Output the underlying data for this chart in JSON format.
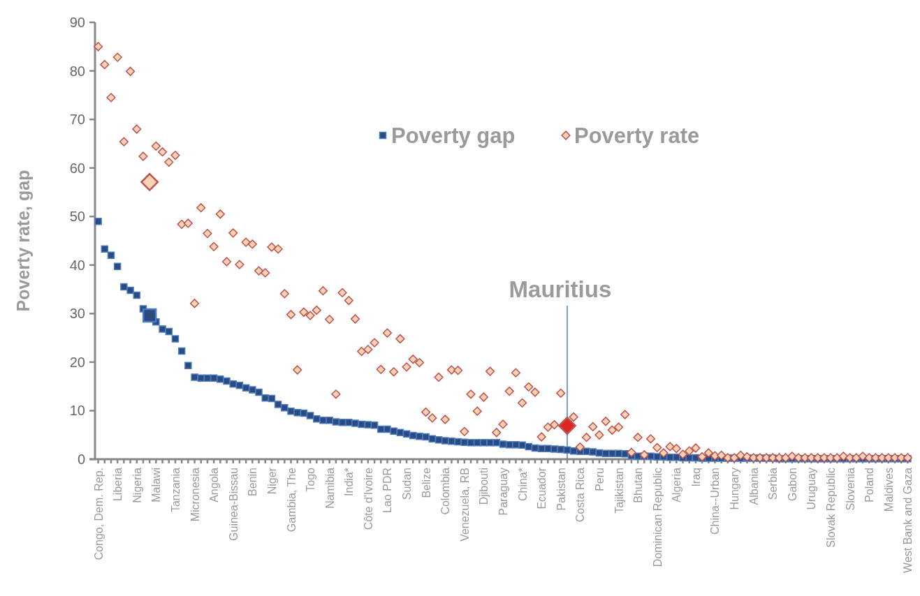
{
  "chart_data": {
    "type": "scatter",
    "ylabel": "Poverty rate, gap",
    "ylim": [
      0,
      90
    ],
    "yticks": [
      0,
      10,
      20,
      30,
      40,
      50,
      60,
      70,
      80,
      90
    ],
    "grid": false,
    "legend": "top",
    "annotations": [
      "Mauritius"
    ],
    "categories": [
      "Congo, Dem. Rep.",
      null,
      null,
      "Liberia",
      null,
      null,
      "Nigeria",
      null,
      null,
      "Malawi",
      null,
      null,
      "Tanzania",
      null,
      null,
      "Micronesia",
      null,
      null,
      "Angola",
      null,
      null,
      "Guinea-Bissau",
      null,
      null,
      "Benin",
      null,
      null,
      "Niger",
      null,
      null,
      "Gambia, The",
      null,
      null,
      "Togo",
      null,
      null,
      "Namibia",
      null,
      null,
      "India*",
      null,
      null,
      "Côte d'Ivoire",
      null,
      null,
      "Lao PDR",
      null,
      null,
      "Sudan",
      null,
      null,
      "Belize",
      null,
      null,
      "Colombia",
      null,
      null,
      "Venezuela, RB",
      null,
      null,
      "Djibouti",
      null,
      null,
      "Paraguay",
      null,
      null,
      "China*",
      null,
      null,
      "Ecuador",
      null,
      null,
      "Pakistan",
      null,
      null,
      "Costa Rica",
      null,
      null,
      "Peru",
      null,
      null,
      "Tajikistan",
      null,
      null,
      "Bhutan",
      null,
      null,
      "Dominican Republic",
      null,
      null,
      "Algeria",
      null,
      null,
      "Iraq",
      null,
      null,
      "China--Urban",
      null,
      null,
      "Hungary",
      null,
      null,
      "Albania",
      null,
      null,
      "Serbia",
      null,
      null,
      "Gabon",
      null,
      null,
      "Uruguay",
      null,
      null,
      "Slovak Republic",
      null,
      null,
      "Slovenia",
      null,
      null,
      "Poland",
      null,
      null,
      "Maldives",
      null,
      null,
      "West Bank and Gaza"
    ],
    "series": [
      {
        "name": "Poverty gap",
        "color": "#2b4a80",
        "marker": "square",
        "values": [
          49.0,
          43.3,
          42.0,
          39.7,
          35.5,
          34.8,
          33.8,
          31.0,
          null,
          28.3,
          26.8,
          26.3,
          24.8,
          22.3,
          19.3,
          16.9,
          16.7,
          16.7,
          16.7,
          16.5,
          16.1,
          15.5,
          15.2,
          14.7,
          14.3,
          13.8,
          12.6,
          12.5,
          11.3,
          10.6,
          9.9,
          9.6,
          9.5,
          9.0,
          8.3,
          8.0,
          8.0,
          7.7,
          7.6,
          7.6,
          7.4,
          7.2,
          7.1,
          7.0,
          6.2,
          6.2,
          5.8,
          5.5,
          5.2,
          4.9,
          4.7,
          4.6,
          4.2,
          4.0,
          3.8,
          3.7,
          3.6,
          3.5,
          3.4,
          3.4,
          3.4,
          3.4,
          3.4,
          3.1,
          3.0,
          3.0,
          2.9,
          2.6,
          2.3,
          2.2,
          2.2,
          2.1,
          2.0,
          1.9,
          1.7,
          1.6,
          1.6,
          1.5,
          1.3,
          1.2,
          1.2,
          1.2,
          1.1,
          0.7,
          0.6,
          0.6,
          0.6,
          0.5,
          0.5,
          0.4,
          0.4,
          0.3,
          0.3,
          0.3,
          0.2,
          0.2,
          0.2,
          0.2,
          0.2,
          0.2,
          0.2,
          0.2,
          0.2,
          0.2,
          0.2,
          0.2,
          0.1,
          0.1,
          0.1,
          0.1,
          0.1,
          0.1,
          0.1,
          0.1,
          0.1,
          0.1,
          0.1,
          0.1,
          0.1,
          0.1,
          0.1,
          0.1,
          0.1,
          0.1,
          0.1,
          0.1,
          0.1
        ]
      },
      {
        "name": "Poverty rate",
        "color": "#fcd3b4",
        "marker": "diamond",
        "values": [
          85.0,
          81.3,
          74.5,
          82.8,
          65.4,
          79.9,
          68.0,
          62.4,
          null,
          64.5,
          63.3,
          61.2,
          62.6,
          48.4,
          48.6,
          32.1,
          51.8,
          46.5,
          43.8,
          50.5,
          40.7,
          46.6,
          40.1,
          44.7,
          44.3,
          38.8,
          38.4,
          43.7,
          43.3,
          34.1,
          29.8,
          18.4,
          30.3,
          29.6,
          30.7,
          34.7,
          28.8,
          13.4,
          34.3,
          32.7,
          28.9,
          22.2,
          22.6,
          24.0,
          18.5,
          26.0,
          18.0,
          24.8,
          19.0,
          20.6,
          19.9,
          9.7,
          8.5,
          16.9,
          8.2,
          18.4,
          18.3,
          5.7,
          13.4,
          9.9,
          12.8,
          18.1,
          5.5,
          7.2,
          14.0,
          17.8,
          11.6,
          14.9,
          13.8,
          4.6,
          6.6,
          7.1,
          13.6,
          null,
          8.7,
          2.5,
          4.5,
          6.7,
          5.0,
          7.8,
          6.0,
          6.6,
          9.2,
          1.4,
          4.5,
          0.9,
          4.2,
          2.4,
          1.3,
          2.6,
          2.2,
          1.0,
          1.7,
          2.3,
          0.5,
          1.3,
          0.7,
          0.8,
          0.3,
          0.3,
          0.8,
          0.5,
          0.3,
          0.3,
          0.3,
          0.3,
          0.3,
          0.3,
          0.6,
          0.3,
          0.3,
          0.3,
          0.3,
          0.3,
          0.3,
          0.3,
          0.6,
          0.3,
          0.3,
          0.6,
          0.3,
          0.3,
          0.3,
          0.3,
          0.3,
          0.3,
          0.3
        ]
      },
      {
        "color": "#2b4a80",
        "marker": "square",
        "values": [
          null,
          null,
          null,
          null,
          null,
          null,
          null,
          null,
          29.6,
          null,
          null,
          null,
          null,
          null,
          null,
          null,
          null,
          null,
          null,
          null,
          null,
          null,
          null,
          null,
          null,
          null,
          null,
          null,
          null,
          null,
          null,
          null,
          null,
          null,
          null,
          null,
          null,
          null,
          null,
          null,
          null,
          null,
          null,
          null,
          null,
          null,
          null,
          null,
          null,
          null,
          null,
          null,
          null,
          null,
          null,
          null,
          null,
          null,
          null,
          null,
          null,
          null,
          null,
          null,
          null,
          null,
          null,
          null,
          null,
          null,
          null,
          null,
          null,
          null,
          null,
          null,
          null,
          null,
          null,
          null,
          null,
          null,
          null,
          null,
          null,
          null,
          null,
          null,
          null,
          null,
          null,
          null,
          null,
          null,
          null,
          null,
          null,
          null,
          null,
          null,
          null,
          null,
          null,
          null,
          null,
          null,
          null,
          null,
          null,
          null,
          null,
          null,
          null,
          null,
          null,
          null,
          null,
          null,
          null,
          null,
          null,
          null,
          null,
          null,
          null,
          null,
          null
        ]
      },
      {
        "color": "#fcd3b4",
        "marker": "diamond",
        "values": [
          null,
          null,
          null,
          null,
          null,
          null,
          null,
          null,
          57.1,
          null,
          null,
          null,
          null,
          null,
          null,
          null,
          null,
          null,
          null,
          null,
          null,
          null,
          null,
          null,
          null,
          null,
          null,
          null,
          null,
          null,
          null,
          null,
          null,
          null,
          null,
          null,
          null,
          null,
          null,
          null,
          null,
          null,
          null,
          null,
          null,
          null,
          null,
          null,
          null,
          null,
          null,
          null,
          null,
          null,
          null,
          null,
          null,
          null,
          null,
          null,
          null,
          null,
          null,
          null,
          null,
          null,
          null,
          null,
          null,
          null,
          null,
          null,
          null,
          null,
          null,
          null,
          null,
          null,
          null,
          null,
          null,
          null,
          null,
          null,
          null,
          null,
          null,
          null,
          null,
          null,
          null,
          null,
          null,
          null,
          null,
          null,
          null,
          null,
          null,
          null,
          null,
          null,
          null,
          null,
          null,
          null,
          null,
          null,
          null,
          null,
          null,
          null,
          null,
          null,
          null,
          null,
          null,
          null,
          null,
          null,
          null,
          null,
          null,
          null,
          null,
          null,
          null
        ]
      },
      {
        "color": "#e02424",
        "marker": "diamond",
        "values": [
          null,
          null,
          null,
          null,
          null,
          null,
          null,
          null,
          null,
          null,
          null,
          null,
          null,
          null,
          null,
          null,
          null,
          null,
          null,
          null,
          null,
          null,
          null,
          null,
          null,
          null,
          null,
          null,
          null,
          null,
          null,
          null,
          null,
          null,
          null,
          null,
          null,
          null,
          null,
          null,
          null,
          null,
          null,
          null,
          null,
          null,
          null,
          null,
          null,
          null,
          null,
          null,
          null,
          null,
          null,
          null,
          null,
          null,
          null,
          null,
          null,
          null,
          null,
          null,
          null,
          null,
          null,
          null,
          null,
          null,
          null,
          null,
          null,
          6.9,
          null,
          null,
          null,
          null,
          null,
          null,
          null,
          null,
          null,
          null,
          null,
          null,
          null,
          null,
          null,
          null,
          null,
          null,
          null,
          null,
          null,
          null,
          null,
          null,
          null,
          null,
          null,
          null,
          null,
          null,
          null,
          null,
          null,
          null,
          null,
          null,
          null,
          null,
          null,
          null,
          null,
          null,
          null,
          null,
          null,
          null,
          null,
          null,
          null,
          null,
          null,
          null,
          null
        ]
      }
    ]
  }
}
